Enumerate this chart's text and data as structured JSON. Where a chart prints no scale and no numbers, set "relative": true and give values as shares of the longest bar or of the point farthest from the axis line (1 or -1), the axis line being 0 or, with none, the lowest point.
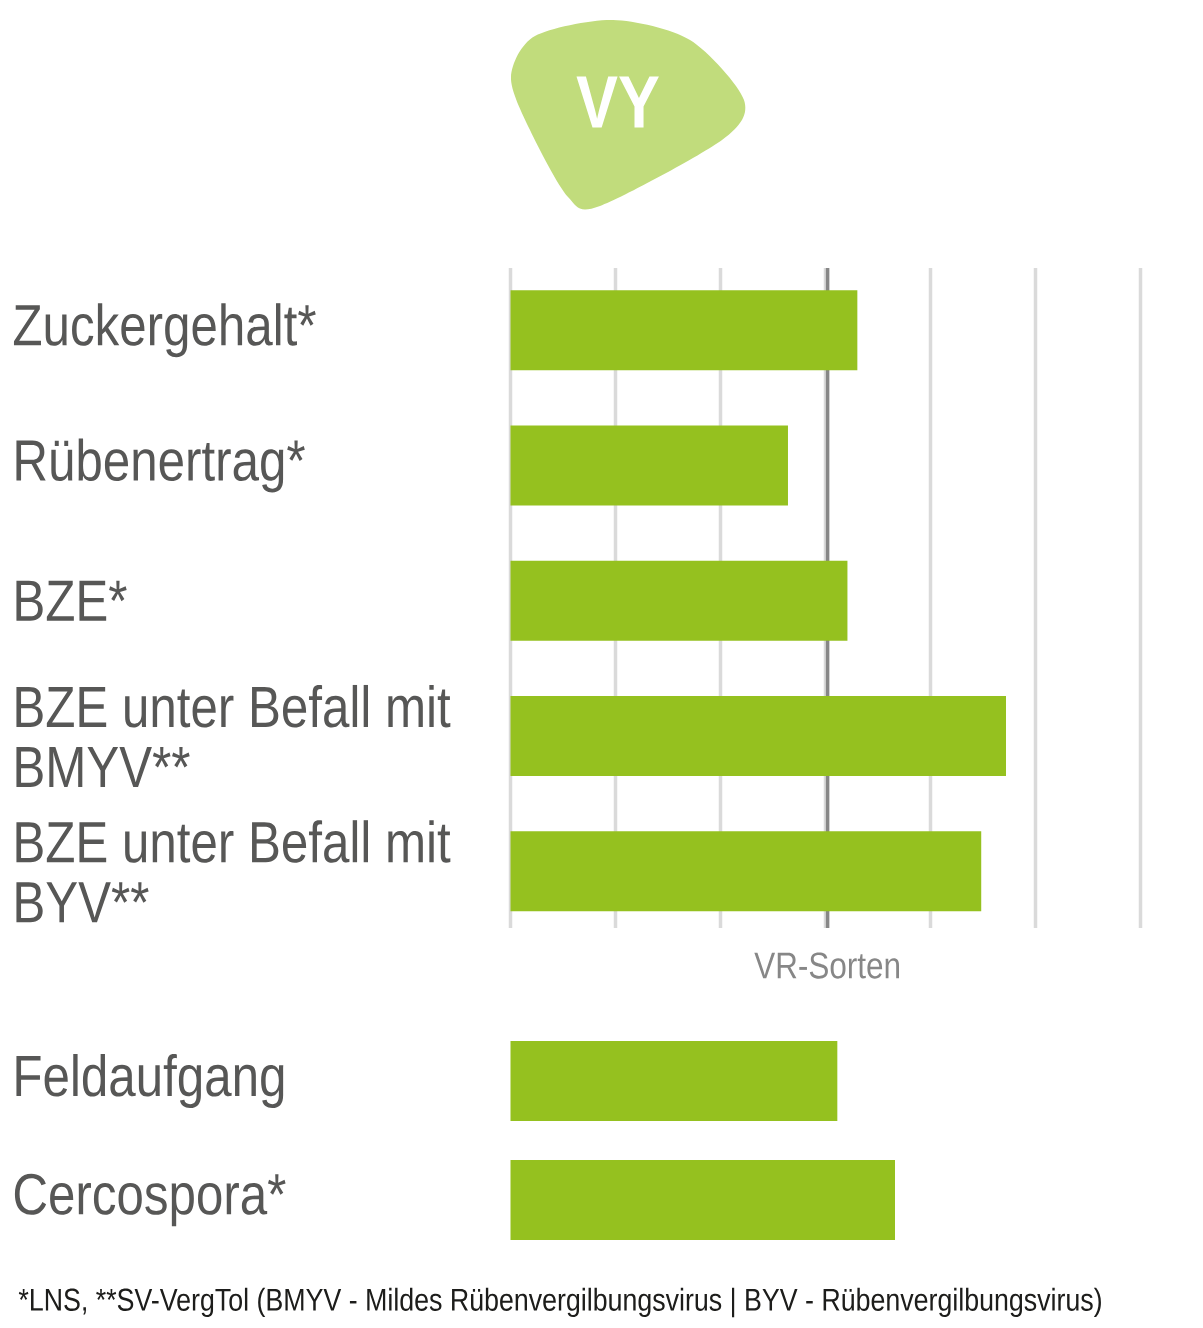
{
  "chart_data": [
    {
      "type": "bar",
      "title": "VY",
      "orientation": "horizontal",
      "relative": true,
      "categories": [
        "Zuckergehalt*",
        "Rübenertrag*",
        "BZE*",
        "BZE unter Befall mit BMYV**",
        "BZE unter Befall mit BYV**"
      ],
      "values": [
        0.7,
        0.56,
        0.68,
        1,
        0.95
      ],
      "color": "#95c11f",
      "grid": "x",
      "ref_lines": [
        {
          "axis": "x",
          "value": 0.64,
          "label": "VR-Sorten",
          "color": "#878787"
        }
      ]
    },
    {
      "type": "bar",
      "orientation": "horizontal",
      "relative": true,
      "categories": [
        "Feldaufgang",
        "Cercospora*"
      ],
      "values": [
        0.85,
        1
      ],
      "color": "#95c11f",
      "annotations": [
        "*LNS, **SV-VergTol (BMYV - Mildes Rübenvergilbungsvirus | BYV - Rübenvergilbungsvirus)"
      ]
    }
  ]
}
